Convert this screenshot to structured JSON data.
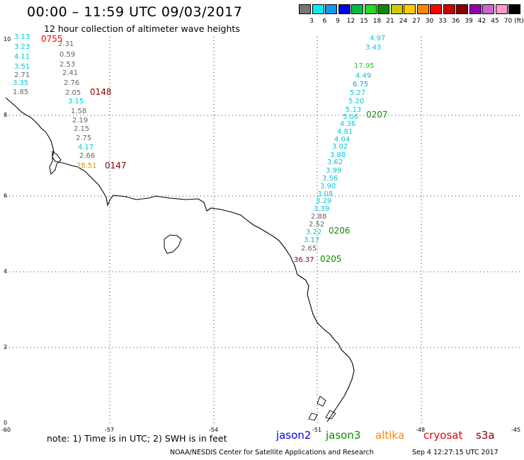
{
  "title": "00:00 – 11:59 UTC 09/03/2017",
  "subtitle": "12 hour collection of altimeter wave heights",
  "legend": {
    "unit": "(ft)",
    "colors": [
      "#777777",
      "#00eeee",
      "#1199ee",
      "#0000ee",
      "#00bb44",
      "#22dd22",
      "#118800",
      "#cccc00",
      "#ffcc00",
      "#ff8800",
      "#ff0000",
      "#cc0000",
      "#880000",
      "#9900aa",
      "#cc66cc",
      "#ff99cc",
      "#000000"
    ],
    "labels": [
      "3",
      "6",
      "9",
      "12",
      "15",
      "18",
      "21",
      "24",
      "27",
      "30",
      "33",
      "36",
      "39",
      "42",
      "45",
      "70"
    ]
  },
  "axes": {
    "y_ticks": [
      "10",
      "8",
      "6",
      "4",
      "2",
      "0"
    ],
    "x_ticks": [
      "-60",
      "-57",
      "-54",
      "-51",
      "-48",
      "-45"
    ]
  },
  "left_values": [
    {
      "text": "3.13",
      "color": "#00c8d8"
    },
    {
      "text": "2.31",
      "color": "#666666"
    },
    {
      "text": "3.23",
      "color": "#00c8d8"
    },
    {
      "text": "0.59",
      "color": "#666666"
    },
    {
      "text": "4.11",
      "color": "#00c8d8"
    },
    {
      "text": "2.53",
      "color": "#666666"
    },
    {
      "text": "3.51",
      "color": "#00c8d8"
    },
    {
      "text": "2.41",
      "color": "#666666"
    },
    {
      "text": "2.71",
      "color": "#666666"
    },
    {
      "text": "2.76",
      "color": "#666666"
    },
    {
      "text": "3.35",
      "color": "#00c8d8"
    },
    {
      "text": "2.05",
      "color": "#666666"
    },
    {
      "text": "1.85",
      "color": "#666666"
    },
    {
      "text": "3.15",
      "color": "#00c8d8"
    },
    {
      "text": "1.58",
      "color": "#666666"
    },
    {
      "text": "2.19",
      "color": "#666666"
    },
    {
      "text": "2.15",
      "color": "#666666"
    },
    {
      "text": "2.75",
      "color": "#666666"
    },
    {
      "text": "4.17",
      "color": "#00c8d8"
    },
    {
      "text": "2.66",
      "color": "#666666"
    },
    {
      "text": "28.51",
      "color": "#e09000"
    }
  ],
  "left_passes": [
    {
      "text": "0755",
      "color": "#ee0000"
    },
    {
      "text": "0148",
      "color": "#880000"
    },
    {
      "text": "0147",
      "color": "#880000"
    }
  ],
  "right_values": [
    {
      "text": "4.97",
      "color": "#00c8d8"
    },
    {
      "text": "3.43",
      "color": "#00c8d8"
    },
    {
      "text": "17.95",
      "color": "#22cc22"
    },
    {
      "text": "4.49",
      "color": "#00c8d8"
    },
    {
      "text": "6.75",
      "color": "#1199ee"
    },
    {
      "text": "5.27",
      "color": "#00c8d8"
    },
    {
      "text": "5.20",
      "color": "#00c8d8"
    },
    {
      "text": "5.13",
      "color": "#00c8d8"
    },
    {
      "text": "5.06",
      "color": "#00c8d8"
    },
    {
      "text": "4.36",
      "color": "#00c8d8"
    },
    {
      "text": "4.81",
      "color": "#00c8d8"
    },
    {
      "text": "4.04",
      "color": "#00c8d8"
    },
    {
      "text": "3.02",
      "color": "#00c8d8"
    },
    {
      "text": "3.88",
      "color": "#00c8d8"
    },
    {
      "text": "3.62",
      "color": "#00c8d8"
    },
    {
      "text": "3.99",
      "color": "#00c8d8"
    },
    {
      "text": "3.56",
      "color": "#00c8d8"
    },
    {
      "text": "3.90",
      "color": "#00c8d8"
    },
    {
      "text": "3.08",
      "color": "#00c8d8"
    },
    {
      "text": "3.29",
      "color": "#00c8d8"
    },
    {
      "text": "3.39",
      "color": "#00c8d8"
    },
    {
      "text": "2.88",
      "color": "#666666"
    },
    {
      "text": "2.52",
      "color": "#666666"
    },
    {
      "text": "3.22",
      "color": "#00c8d8"
    },
    {
      "text": "3.17",
      "color": "#00c8d8"
    },
    {
      "text": "2.65",
      "color": "#666666"
    },
    {
      "text": "36.37",
      "color": "#880000"
    }
  ],
  "right_passes": [
    {
      "text": "0207",
      "color": "#118800"
    },
    {
      "text": "0206",
      "color": "#118800"
    },
    {
      "text": "0205",
      "color": "#118800"
    }
  ],
  "note": "note: 1) Time is in UTC; 2) SWH is in feet",
  "satellites": [
    {
      "name": "jason2",
      "color": "#0000ee"
    },
    {
      "name": "jason3",
      "color": "#118800"
    },
    {
      "name": "altika",
      "color": "#ff8800"
    },
    {
      "name": "cryosat",
      "color": "#ee0000"
    },
    {
      "name": "s3a",
      "color": "#880000"
    }
  ],
  "credit": "NOAA/NESDIS Center for Satellite Applications and Research",
  "timestamp": "Sep  4 12:27:15 UTC 2017"
}
